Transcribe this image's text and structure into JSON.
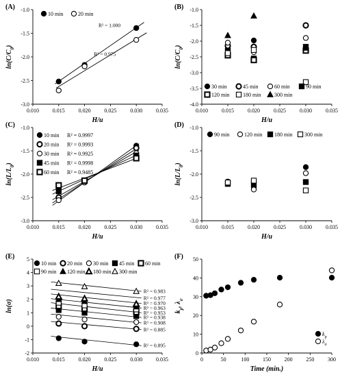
{
  "chart_data": [
    {
      "id": "A",
      "type": "scatter",
      "panel_label": "(A)",
      "xlabel": "H/u",
      "ylabel": "ln(C/C0)",
      "ylabel_main": "ln(C/C",
      "ylabel_sub": "0",
      "ylabel_close": ")",
      "xlim": [
        0.01,
        0.035
      ],
      "ylim": [
        -3.0,
        -1.0
      ],
      "xticks": [
        "0.010",
        "0.015",
        "0.020",
        "0.025",
        "0.030",
        "0.035"
      ],
      "yticks": [
        "-1.0",
        "-1.5",
        "-2.0",
        "-2.5",
        "-3.0"
      ],
      "legend_position": "top-left",
      "legend_cols": 2,
      "series": [
        {
          "name": "10 min",
          "marker": "circle-filled",
          "x": [
            0.015,
            0.02,
            0.03
          ],
          "y": [
            -2.52,
            -2.17,
            -1.39
          ],
          "fit": {
            "x": [
              0.0143,
              0.0315
            ],
            "y": [
              -2.57,
              -1.27
            ]
          }
        },
        {
          "name": "20 min",
          "marker": "circle-open",
          "x": [
            0.015,
            0.02,
            0.03
          ],
          "y": [
            -2.71,
            -2.2,
            -1.64
          ],
          "fit": {
            "x": [
              0.0145,
              0.032
            ],
            "y": [
              -2.66,
              -1.49
            ]
          }
        }
      ],
      "annotations": [
        {
          "text": "R² = 1.000",
          "x": 0.0227,
          "y": -1.37
        },
        {
          "text": "R² = 0.975",
          "x": 0.0218,
          "y": -1.98
        }
      ]
    },
    {
      "id": "B",
      "type": "scatter",
      "panel_label": "(B)",
      "xlabel": "H/u",
      "ylabel": "ln(C/C0)",
      "ylabel_main": "ln(C/C",
      "ylabel_sub": "0",
      "ylabel_close": ")",
      "xlim": [
        0.01,
        0.035
      ],
      "ylim": [
        -4.0,
        -1.0
      ],
      "xticks": [
        "0.010",
        "0.015",
        "0.020",
        "0.025",
        "0.030",
        "0.035"
      ],
      "yticks": [
        "-1.0",
        "-1.5",
        "-2.0",
        "-2.5",
        "-3.0",
        "-3.5",
        "-4.0"
      ],
      "legend_position": "bottom",
      "legend_cols": 4,
      "series": [
        {
          "name": "30 min",
          "marker": "circle-filled",
          "x": [
            0.015,
            0.02,
            0.03
          ],
          "y": [
            -2.25,
            -1.98,
            -2.25
          ]
        },
        {
          "name": "45 min",
          "marker": "circle-bold",
          "x": [
            0.015,
            0.02,
            0.03
          ],
          "y": [
            -2.15,
            -2.18,
            -1.5
          ]
        },
        {
          "name": "60 min",
          "marker": "circle-open",
          "x": [
            0.015,
            0.02,
            0.03
          ],
          "y": [
            -2.05,
            -2.35,
            -1.9
          ]
        },
        {
          "name": "90 min",
          "marker": "square-filled",
          "x": [
            0.015,
            0.02,
            0.03
          ],
          "y": [
            -2.3,
            -2.55,
            -2.18
          ]
        },
        {
          "name": "120 min",
          "marker": "square-bold",
          "x": [
            0.015,
            0.02,
            0.03
          ],
          "y": [
            -2.45,
            -2.6,
            -2.3
          ]
        },
        {
          "name": "180 min",
          "marker": "square-open",
          "x": [
            0.015,
            0.02,
            0.03
          ],
          "y": [
            -2.38,
            -2.28,
            -3.3
          ]
        },
        {
          "name": "300 min",
          "marker": "triangle-filled",
          "x": [
            0.015,
            0.02,
            0.03
          ],
          "y": [
            -1.82,
            -1.2,
            -2.22
          ]
        }
      ]
    },
    {
      "id": "C",
      "type": "scatter",
      "panel_label": "(C)",
      "xlabel": "H/u",
      "ylabel": "ln(L/L0)",
      "ylabel_main": "ln(L/L",
      "ylabel_sub": "0",
      "ylabel_close": ")",
      "xlim": [
        0.01,
        0.035
      ],
      "ylim": [
        -3.0,
        -1.0
      ],
      "xticks": [
        "0.010",
        "0.015",
        "0.020",
        "0.025",
        "0.030",
        "0.035"
      ],
      "yticks": [
        "-1.0",
        "-1.5",
        "-2.0",
        "-2.5",
        "-3.0"
      ],
      "legend_position": "left",
      "legend_cols": 1,
      "series": [
        {
          "name": "10 min",
          "r2": "R² = 0.9997",
          "marker": "circle-filled",
          "x": [
            0.015,
            0.02,
            0.03
          ],
          "y": [
            -2.52,
            -2.16,
            -1.39
          ],
          "fit": {
            "x": [
              0.0138,
              0.0305
            ],
            "y": [
              -2.67,
              -1.35
            ]
          }
        },
        {
          "name": "20 min",
          "r2": "R² = 0.9993",
          "marker": "circle-bold",
          "x": [
            0.015,
            0.02,
            0.03
          ],
          "y": [
            -2.5,
            -2.17,
            -1.44
          ],
          "fit": {
            "x": [
              0.0138,
              0.0305
            ],
            "y": [
              -2.62,
              -1.42
            ]
          }
        },
        {
          "name": "30 min",
          "r2": "R² = 0.9925",
          "marker": "circle-open",
          "x": [
            0.015,
            0.02,
            0.03
          ],
          "y": [
            -2.56,
            -2.18,
            -1.55
          ],
          "fit": {
            "x": [
              0.0138,
              0.0305
            ],
            "y": [
              -2.55,
              -1.49
            ]
          }
        },
        {
          "name": "45 min",
          "r2": "R² = 0.9998",
          "marker": "square-filled",
          "x": [
            0.015,
            0.02,
            0.03
          ],
          "y": [
            -2.37,
            -2.15,
            -1.6
          ],
          "fit": {
            "x": [
              0.0138,
              0.0305
            ],
            "y": [
              -2.43,
              -1.57
            ]
          }
        },
        {
          "name": "60 min",
          "r2": "R² = 0.9485",
          "marker": "square-bold",
          "x": [
            0.015,
            0.02,
            0.03
          ],
          "y": [
            -2.24,
            -2.14,
            -1.66
          ],
          "fit": {
            "x": [
              0.0138,
              0.0305
            ],
            "y": [
              -2.35,
              -1.64
            ]
          }
        }
      ]
    },
    {
      "id": "D",
      "type": "scatter",
      "panel_label": "(D)",
      "xlabel": "H/u",
      "ylabel": "ln(L/L0)",
      "ylabel_main": "ln(L/L",
      "ylabel_sub": "0",
      "ylabel_close": ")",
      "xlim": [
        0.01,
        0.035
      ],
      "ylim": [
        -3.0,
        -1.0
      ],
      "xticks": [
        "0.010",
        "0.015",
        "0.020",
        "0.025",
        "0.030",
        "0.035"
      ],
      "yticks": [
        "-1.0",
        "-1.5",
        "-2.0",
        "-2.5",
        "-3.0"
      ],
      "legend_position": "top",
      "legend_cols": 4,
      "series": [
        {
          "name": "90 min",
          "marker": "circle-filled",
          "x": [
            0.015,
            0.02,
            0.03
          ],
          "y": [
            -2.2,
            -2.28,
            -1.85
          ]
        },
        {
          "name": "120 min",
          "marker": "circle-open",
          "x": [
            0.015,
            0.02,
            0.03
          ],
          "y": [
            -2.16,
            -2.33,
            -1.98
          ]
        },
        {
          "name": "180 min",
          "marker": "square-filled",
          "x": [
            0.015,
            0.02,
            0.03
          ],
          "y": [
            -2.21,
            -2.22,
            -2.17
          ]
        },
        {
          "name": "300 min",
          "marker": "square-open",
          "x": [
            0.015,
            0.02,
            0.03
          ],
          "y": [
            -2.18,
            -2.14,
            -2.35
          ]
        }
      ]
    },
    {
      "id": "E",
      "type": "scatter",
      "panel_label": "(E)",
      "xlabel": "H/u",
      "ylabel": "ln(σ)",
      "xlim": [
        0.01,
        0.035
      ],
      "ylim": [
        -2,
        5
      ],
      "xticks": [
        "0.010",
        "0.015",
        "0.020",
        "0.025",
        "0.030",
        "0.035"
      ],
      "yticks": [
        "5",
        "4",
        "3",
        "2",
        "1",
        "0",
        "-1",
        "-2"
      ],
      "legend_position": "top",
      "legend_cols": 5,
      "x": [
        0.015,
        0.02,
        0.03
      ],
      "series": [
        {
          "name": "10 min",
          "marker": "circle-filled",
          "y": [
            -0.9,
            -1.15,
            -1.35
          ]
        },
        {
          "name": "20 min",
          "marker": "circle-bold",
          "y": [
            0.2,
            0.0,
            -0.2
          ]
        },
        {
          "name": "30 min",
          "marker": "circle-open",
          "y": [
            0.7,
            0.5,
            0.3
          ]
        },
        {
          "name": "45 min",
          "marker": "square-filled",
          "y": [
            1.2,
            1.0,
            0.75
          ]
        },
        {
          "name": "60 min",
          "marker": "square-bold",
          "y": [
            1.5,
            1.3,
            1.05
          ]
        },
        {
          "name": "90 min",
          "marker": "square-open",
          "y": [
            1.75,
            1.55,
            1.25
          ]
        },
        {
          "name": "120 min",
          "marker": "triangle-filled",
          "y": [
            2.0,
            1.85,
            1.45
          ]
        },
        {
          "name": "180 min",
          "marker": "triangle-bold",
          "y": [
            2.2,
            2.05,
            1.65
          ]
        },
        {
          "name": "300 min",
          "marker": "triangle-open",
          "y": [
            3.2,
            2.95,
            2.6
          ]
        }
      ],
      "fit_lines": [
        {
          "r2": "R² = 0.983",
          "x": [
            0.0135,
            0.031
          ],
          "y": [
            3.3,
            2.6
          ]
        },
        {
          "r2": "R² = 0.977",
          "x": [
            0.0135,
            0.031
          ],
          "y": [
            2.75,
            2.1
          ]
        },
        {
          "r2": "R² = 0.970",
          "x": [
            0.0135,
            0.031
          ],
          "y": [
            2.4,
            1.7
          ]
        },
        {
          "r2": "R² = 0.963",
          "x": [
            0.0135,
            0.031
          ],
          "y": [
            2.05,
            1.35
          ]
        },
        {
          "r2": "R² = 0.953",
          "x": [
            0.0135,
            0.031
          ],
          "y": [
            1.75,
            1.0
          ]
        },
        {
          "r2": "R² = 0.938",
          "x": [
            0.0135,
            0.031
          ],
          "y": [
            1.35,
            0.65
          ]
        },
        {
          "r2": "R² = 0.908",
          "x": [
            0.0135,
            0.031
          ],
          "y": [
            0.9,
            0.25
          ]
        },
        {
          "r2": "R² = 0.885",
          "x": [
            0.0135,
            0.031
          ],
          "y": [
            0.35,
            -0.25
          ]
        },
        {
          "r2": "R² = 0.895",
          "x": [
            0.0135,
            0.031
          ],
          "y": [
            -0.75,
            -1.45
          ]
        }
      ]
    },
    {
      "id": "F",
      "type": "scatter",
      "panel_label": "(F)",
      "xlabel": "Time (min.)",
      "ylabel": "kp, λσ",
      "ylabel_parts": [
        {
          "text": "k",
          "style": "normal"
        },
        {
          "text": "p",
          "style": "sub"
        },
        {
          "text": ", λ",
          "style": "normal"
        },
        {
          "text": "σ",
          "style": "sub"
        }
      ],
      "xlim": [
        0,
        300
      ],
      "ylim": [
        0,
        50
      ],
      "xticks": [
        "0",
        "50",
        "100",
        "150",
        "200",
        "250",
        "300"
      ],
      "yticks": [
        "50",
        "40",
        "30",
        "20",
        "10",
        "0"
      ],
      "legend_position": "bottom-right",
      "legend_cols": 1,
      "series": [
        {
          "name": "kp",
          "name_main": "k",
          "name_sub": "p",
          "marker": "circle-filled",
          "x": [
            10,
            20,
            30,
            45,
            60,
            90,
            120,
            180,
            300
          ],
          "y": [
            30.5,
            30.8,
            31.8,
            33.8,
            35.0,
            37.4,
            39.0,
            40.1,
            40.1
          ]
        },
        {
          "name": "λσ",
          "name_main": "λ",
          "name_sub": "σ",
          "marker": "circle-open",
          "x": [
            10,
            20,
            30,
            45,
            60,
            90,
            120,
            180,
            300
          ],
          "y": [
            1.3,
            1.8,
            2.9,
            5.2,
            7.5,
            12.0,
            16.7,
            25.8,
            44.0
          ]
        }
      ]
    }
  ]
}
